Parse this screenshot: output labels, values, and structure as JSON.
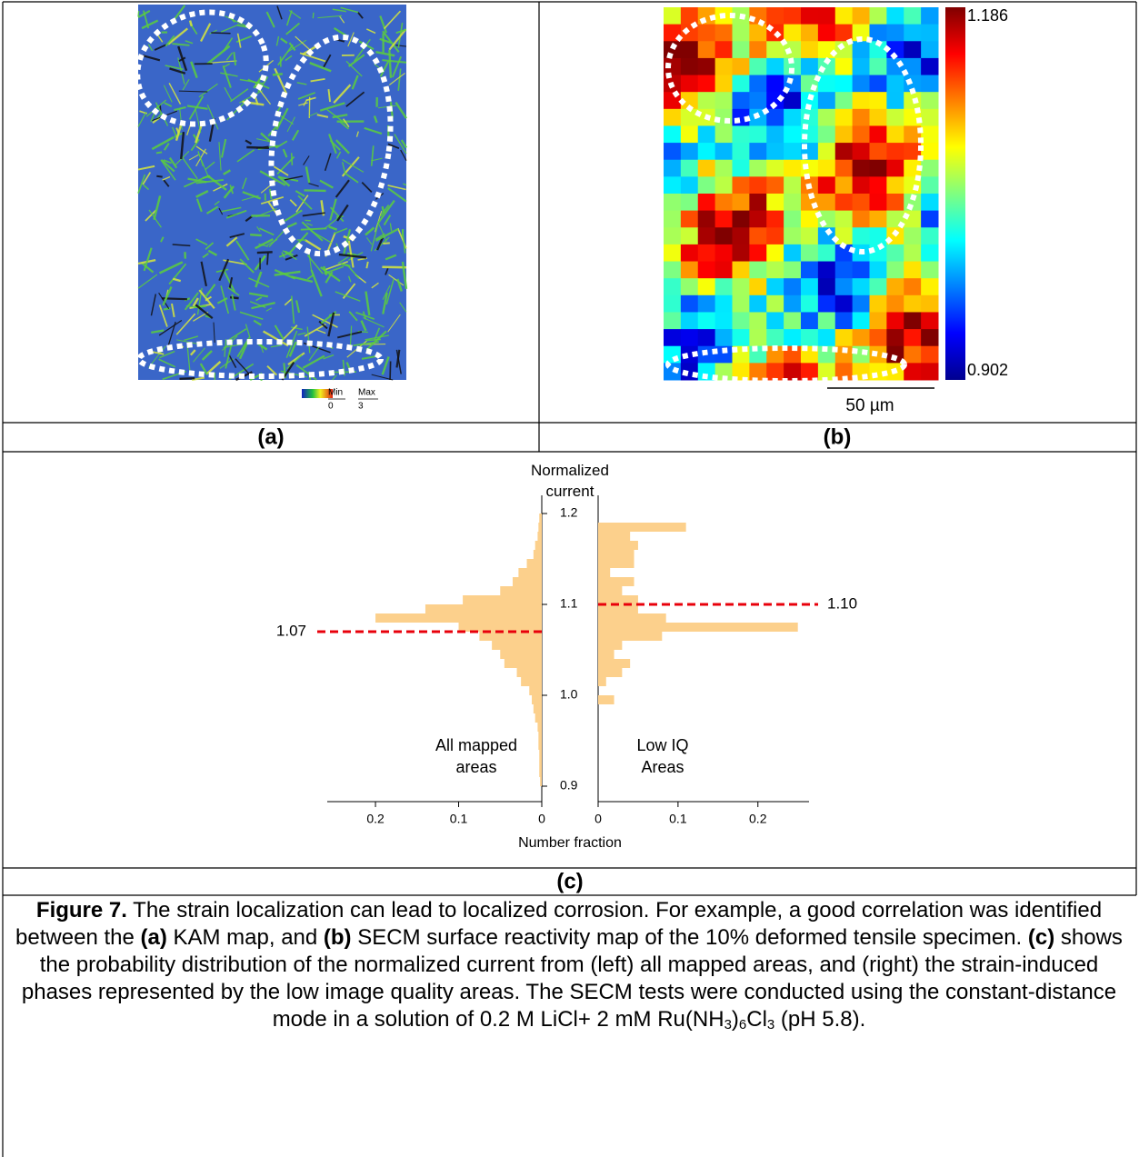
{
  "panel_a": {
    "label": "(a)",
    "colorbar": {
      "min_label": "Min",
      "max_label": "Max",
      "min": 0,
      "max": 3
    }
  },
  "panel_b": {
    "label": "(b)",
    "colorbar": {
      "max": 1.186,
      "min": 0.902
    },
    "scale_bar": "50 µm"
  },
  "chart_data": {
    "type": "mirrored-histogram",
    "y_label": "Normalized current",
    "x_label": "Number fraction",
    "bins": [
      0.9,
      0.91,
      0.92,
      0.93,
      0.94,
      0.95,
      0.96,
      0.97,
      0.98,
      0.99,
      1.0,
      1.01,
      1.02,
      1.03,
      1.04,
      1.05,
      1.06,
      1.07,
      1.08,
      1.09,
      1.1,
      1.11,
      1.12,
      1.13,
      1.14,
      1.15,
      1.16,
      1.17,
      1.18,
      1.19,
      1.2
    ],
    "ylim": [
      0.883,
      1.22
    ],
    "yticks": [
      0.9,
      {
        "value": 1,
        "label": "1.0"
      },
      1.1,
      1.2
    ],
    "series": [
      {
        "name": "All mapped areas",
        "side": "left",
        "color": "#fcd08c",
        "xlim": [
          0,
          0.258
        ],
        "xticks": [
          0.2,
          0.1,
          0
        ],
        "values": [
          0.002,
          0.003,
          0.003,
          0.003,
          0.004,
          0.004,
          0.005,
          0.008,
          0.01,
          0.012,
          0.015,
          0.025,
          0.03,
          0.045,
          0.05,
          0.06,
          0.075,
          0.1,
          0.2,
          0.14,
          0.095,
          0.05,
          0.035,
          0.028,
          0.018,
          0.01,
          0.008,
          0.005,
          0.004,
          0.003
        ],
        "mean": 1.07,
        "mean_color": "#e8000b"
      },
      {
        "name": "Low IQ Areas",
        "side": "right",
        "color": "#fcd08c",
        "xlim": [
          0,
          0.264
        ],
        "xticks": [
          0,
          0.1,
          0.2
        ],
        "values": [
          0,
          0,
          0,
          0,
          0,
          0,
          0,
          0,
          0,
          0.02,
          0,
          0.01,
          0.03,
          0.04,
          0.02,
          0.03,
          0.08,
          0.25,
          0.085,
          0.05,
          0.05,
          0.03,
          0.045,
          0.015,
          0.045,
          0.045,
          0.05,
          0.04,
          0.11,
          0
        ],
        "mean": {
          "value": 1.1,
          "label": "1.10"
        },
        "mean_color": "#e8000b"
      }
    ]
  },
  "panel_c_label": "(c)",
  "caption": [
    {
      "text": "Figure 7.",
      "bold": true
    },
    {
      "text": " The strain localization can lead to localized corrosion. For example, a good correlation was identified between the "
    },
    {
      "text": "(a)",
      "bold": true
    },
    {
      "text": " KAM map, and "
    },
    {
      "text": "(b)",
      "bold": true
    },
    {
      "text": " SECM surface reactivity map of the 10% deformed tensile specimen. "
    },
    {
      "text": "(c)",
      "bold": true
    },
    {
      "text": " shows the probability distribution of the normalized current from (left) all mapped areas, and (right) the strain-induced phases represented by the low image quality areas. The SECM tests were conducted using the constant-distance mode in a solution of 0.2 M LiCl+ 2 mM Ru(NH"
    },
    {
      "text": "3",
      "sub": true
    },
    {
      "text": ")"
    },
    {
      "text": "6",
      "sub": true
    },
    {
      "text": "Cl"
    },
    {
      "text": "3",
      "sub": true
    },
    {
      "text": " (pH 5.8)."
    }
  ]
}
